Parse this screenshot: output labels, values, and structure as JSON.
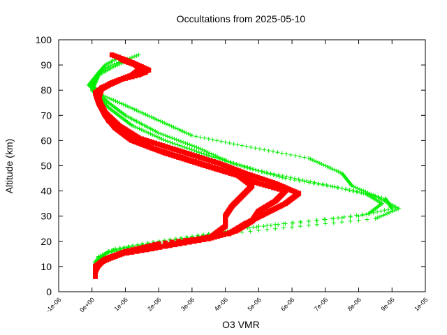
{
  "chart_data": {
    "type": "scatter",
    "title": "Occultations from 2025-05-10",
    "xlabel": "O3 VMR",
    "ylabel": "Altitude (km)",
    "xlim": [
      -1e-06,
      1e-05
    ],
    "ylim": [
      0,
      100
    ],
    "x_tick_labels": [
      "-1e-06",
      "0e+00",
      "1e-06",
      "2e-06",
      "3e-06",
      "4e-06",
      "5e-06",
      "6e-06",
      "7e-06",
      "8e-06",
      "9e-06",
      "1e-05"
    ],
    "x_tick_values": [
      -1e-06,
      0,
      1e-06,
      2e-06,
      3e-06,
      4e-06,
      5e-06,
      6e-06,
      7e-06,
      8e-06,
      9e-06,
      1e-05
    ],
    "y_tick_labels": [
      "0",
      "10",
      "20",
      "30",
      "40",
      "50",
      "60",
      "70",
      "80",
      "90",
      "100"
    ],
    "y_tick_values": [
      0,
      10,
      20,
      30,
      40,
      50,
      60,
      70,
      80,
      90,
      100
    ],
    "grid": false,
    "colors": {
      "series_green": "#00ee00",
      "series_red": "#ff0000",
      "axis": "#000000"
    },
    "series": [
      {
        "name": "green-profiles",
        "marker": "plus",
        "color": "#00ee00",
        "profiles": [
          [
            [
              1.4e-06,
              94
            ],
            [
              1e-06,
              92
            ],
            [
              6e-07,
              90
            ],
            [
              3e-07,
              88
            ],
            [
              1e-07,
              85
            ],
            [
              0.0,
              82
            ],
            [
              3e-07,
              78
            ],
            [
              1e-06,
              74
            ],
            [
              2e-06,
              68
            ],
            [
              3e-06,
              62
            ],
            [
              4.5e-06,
              58
            ],
            [
              6.5e-06,
              53
            ],
            [
              7.5e-06,
              47
            ],
            [
              7.8e-06,
              42
            ],
            [
              8.5e-06,
              38
            ],
            [
              9.2e-06,
              33
            ],
            [
              8.5e-06,
              29
            ],
            [
              7e-06,
              27
            ],
            [
              5.5e-06,
              25
            ],
            [
              4e-06,
              23
            ],
            [
              3e-06,
              21
            ],
            [
              2e-06,
              19
            ],
            [
              1.2e-06,
              18
            ],
            [
              5e-07,
              16
            ],
            [
              1e-07,
              12
            ],
            [
              1e-07,
              8
            ]
          ],
          [
            [
              8e-07,
              93
            ],
            [
              4e-07,
              90
            ],
            [
              2e-07,
              87
            ],
            [
              -1e-07,
              82
            ],
            [
              4e-07,
              76
            ],
            [
              1e-06,
              70
            ],
            [
              2e-06,
              63
            ],
            [
              3.2e-06,
              57
            ],
            [
              4.2e-06,
              51
            ],
            [
              5.8e-06,
              45
            ],
            [
              7.5e-06,
              41
            ],
            [
              8.8e-06,
              37
            ],
            [
              9e-06,
              33
            ],
            [
              8e-06,
              30
            ],
            [
              6.5e-06,
              28
            ],
            [
              5e-06,
              26
            ],
            [
              3.5e-06,
              23
            ],
            [
              2.5e-06,
              21
            ],
            [
              1.5e-06,
              19
            ],
            [
              7e-07,
              17
            ],
            [
              2e-07,
              14
            ],
            [
              1e-07,
              9
            ]
          ],
          [
            [
              1.1e-06,
              92
            ],
            [
              6e-07,
              89
            ],
            [
              2e-07,
              86
            ],
            [
              0.0,
              80
            ],
            [
              5e-07,
              73
            ],
            [
              1.2e-06,
              66
            ],
            [
              2.2e-06,
              60
            ],
            [
              3.5e-06,
              54
            ],
            [
              5e-06,
              48
            ],
            [
              6.8e-06,
              43
            ],
            [
              8.2e-06,
              39
            ],
            [
              8.7e-06,
              35
            ],
            [
              8.3e-06,
              31
            ],
            [
              7.2e-06,
              29
            ],
            [
              5.8e-06,
              27
            ],
            [
              4.5e-06,
              25
            ],
            [
              3.2e-06,
              22
            ],
            [
              2.2e-06,
              20
            ],
            [
              1.2e-06,
              18
            ],
            [
              4e-07,
              15
            ],
            [
              1e-07,
              10
            ]
          ]
        ]
      },
      {
        "name": "red-profiles",
        "marker": "square",
        "color": "#ff0000",
        "profiles": [
          [
            [
              6e-07,
              94
            ],
            [
              1.2e-06,
              91
            ],
            [
              1.7e-06,
              88
            ],
            [
              1.4e-06,
              86
            ],
            [
              8e-07,
              84
            ],
            [
              3e-07,
              81
            ],
            [
              2e-07,
              77
            ],
            [
              3e-07,
              73
            ],
            [
              5e-07,
              68
            ],
            [
              1e-06,
              62
            ],
            [
              1.8e-06,
              57
            ],
            [
              3e-06,
              52
            ],
            [
              4.2e-06,
              47
            ],
            [
              5e-06,
              43
            ],
            [
              5.8e-06,
              40
            ],
            [
              5.5e-06,
              36
            ],
            [
              5e-06,
              32
            ],
            [
              4.8e-06,
              28
            ],
            [
              4.3e-06,
              24
            ],
            [
              3.5e-06,
              21
            ],
            [
              2.2e-06,
              18
            ],
            [
              1.2e-06,
              16
            ],
            [
              6e-07,
              14
            ],
            [
              2e-07,
              11
            ],
            [
              1e-07,
              8
            ],
            [
              1e-07,
              6
            ]
          ],
          [
            [
              8e-07,
              93
            ],
            [
              1.3e-06,
              90
            ],
            [
              1.6e-06,
              87
            ],
            [
              1e-06,
              85
            ],
            [
              5e-07,
              82
            ],
            [
              1e-07,
              79
            ],
            [
              2e-07,
              75
            ],
            [
              4e-07,
              70
            ],
            [
              7e-07,
              65
            ],
            [
              1.2e-06,
              60
            ],
            [
              2.2e-06,
              55
            ],
            [
              3.4e-06,
              50
            ],
            [
              4.4e-06,
              46
            ],
            [
              4.8e-06,
              42
            ],
            [
              4.5e-06,
              38
            ],
            [
              4.2e-06,
              34
            ],
            [
              4e-06,
              30
            ],
            [
              4e-06,
              26
            ],
            [
              3.6e-06,
              22
            ],
            [
              2.8e-06,
              20
            ],
            [
              1.8e-06,
              17
            ],
            [
              9e-07,
              15
            ],
            [
              3e-07,
              12
            ],
            [
              1e-07,
              9
            ]
          ],
          [
            [
              9e-07,
              92
            ],
            [
              1.5e-06,
              89
            ],
            [
              1.2e-06,
              86
            ],
            [
              6e-07,
              83
            ],
            [
              2e-07,
              80
            ],
            [
              2e-07,
              76
            ],
            [
              4e-07,
              71
            ],
            [
              8e-07,
              66
            ],
            [
              1.4e-06,
              61
            ],
            [
              2.6e-06,
              56
            ],
            [
              3.8e-06,
              51
            ],
            [
              4.6e-06,
              47
            ],
            [
              5.5e-06,
              43
            ],
            [
              6.2e-06,
              39
            ],
            [
              5.8e-06,
              35
            ],
            [
              5.2e-06,
              31
            ],
            [
              4.6e-06,
              27
            ],
            [
              4.1e-06,
              23
            ],
            [
              3.2e-06,
              21
            ],
            [
              2e-06,
              19
            ],
            [
              1e-06,
              16
            ],
            [
              4e-07,
              13
            ],
            [
              1e-07,
              10
            ],
            [
              1e-07,
              7
            ]
          ]
        ]
      }
    ]
  }
}
